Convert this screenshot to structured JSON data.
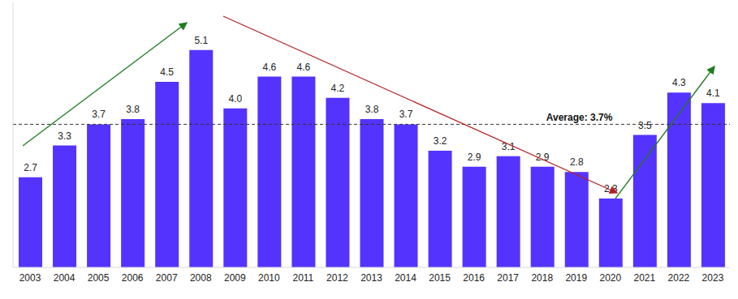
{
  "chart_data": {
    "type": "bar",
    "categories": [
      "2003",
      "2004",
      "2005",
      "2006",
      "2007",
      "2008",
      "2009",
      "2010",
      "2011",
      "2012",
      "2013",
      "2014",
      "2015",
      "2016",
      "2017",
      "2018",
      "2019",
      "2020",
      "2021",
      "2022",
      "2023"
    ],
    "values": [
      2.7,
      3.3,
      3.7,
      3.8,
      4.5,
      5.1,
      4.0,
      4.6,
      4.6,
      4.2,
      3.8,
      3.7,
      3.2,
      2.9,
      3.1,
      2.9,
      2.8,
      2.3,
      3.5,
      4.3,
      4.1
    ],
    "value_labels": [
      "2.7",
      "3.3",
      "3.7",
      "3.8",
      "4.5",
      "5.1",
      "4.0",
      "4.6",
      "4.6",
      "4.2",
      "3.8",
      "3.7",
      "3.2",
      "2.9",
      "3.1",
      "2.9",
      "2.8",
      "2.3",
      "3.5",
      "4.3",
      "4.1"
    ],
    "color": "#5533ff",
    "ylim": [
      1,
      6
    ],
    "grid": false,
    "data_labels": true,
    "tick_labels": "x",
    "annotations": [
      {
        "text": "Average: 3.7%",
        "value": 3.7,
        "line_style": "dashed"
      }
    ]
  }
}
